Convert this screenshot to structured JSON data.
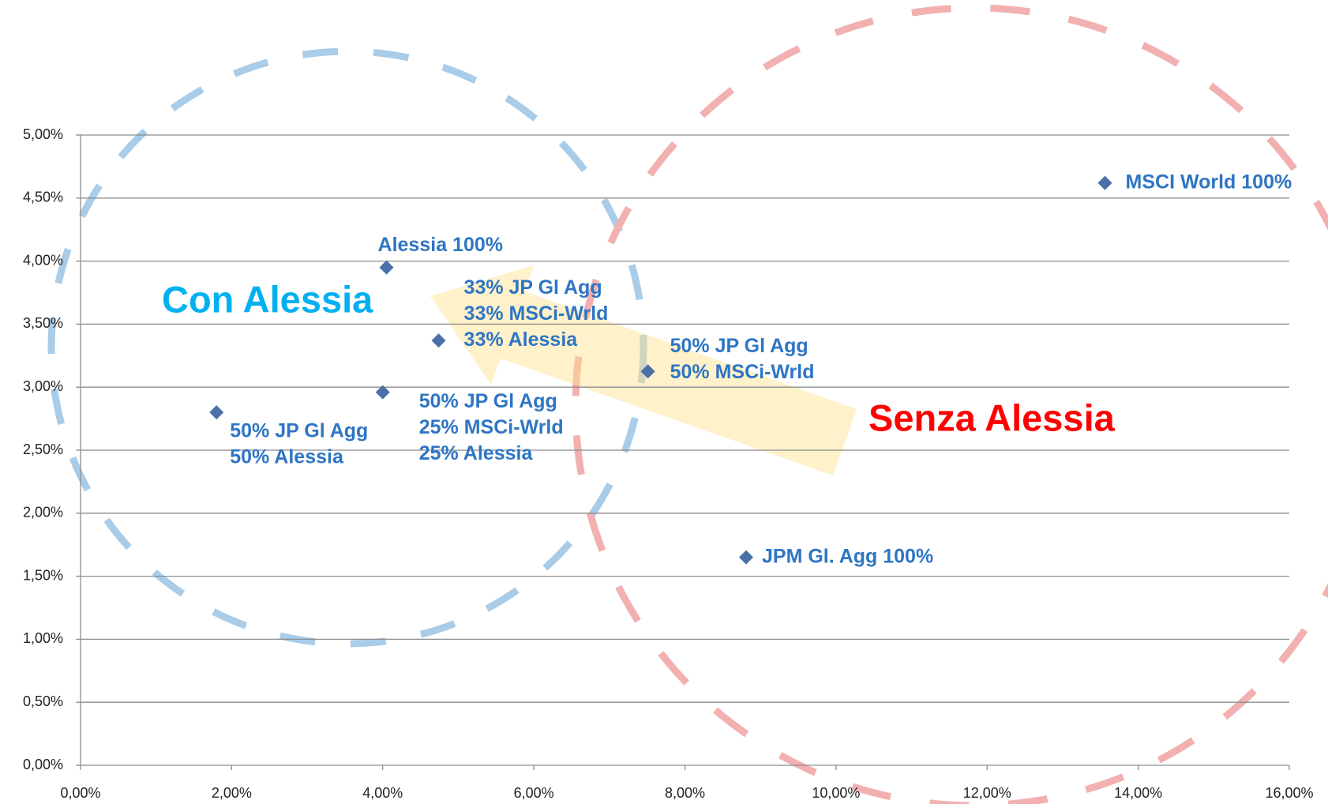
{
  "chart_data": {
    "type": "scatter",
    "x": [
      13.56,
      4.05,
      4.74,
      7.51,
      4.0,
      1.8,
      8.81
    ],
    "values": [
      4.62,
      3.95,
      3.37,
      3.125,
      2.96,
      2.8,
      1.65
    ],
    "point_labels": [
      [
        "MSCI World 100%"
      ],
      [
        "Alessia 100%"
      ],
      [
        "33% JP Gl Agg",
        "33% MSCi-Wrld",
        "33% Alessia"
      ],
      [
        "50% JP Gl Agg",
        "50% MSCi-Wrld"
      ],
      [
        "50% JP Gl Agg",
        "25% MSCi-Wrld",
        "25% Alessia"
      ],
      [
        "50% JP Gl Agg",
        "50% Alessia"
      ],
      [
        "JPM Gl. Agg 100%"
      ]
    ],
    "color": "#4a70a8",
    "xlim": [
      0,
      16
    ],
    "ylim": [
      0,
      5
    ],
    "xticks": [
      {
        "value": 0,
        "label": "0,00%"
      },
      {
        "value": 2,
        "label": "2,00%"
      },
      {
        "value": 4,
        "label": "4,00%"
      },
      {
        "value": 6,
        "label": "6,00%"
      },
      {
        "value": 8,
        "label": "8,00%"
      },
      {
        "value": 10,
        "label": "10,00%"
      },
      {
        "value": 12,
        "label": "12,00%"
      },
      {
        "value": 14,
        "label": "14,00%"
      },
      {
        "value": 16,
        "label": "16,00%"
      }
    ],
    "yticks": [
      {
        "value": 0,
        "label": "0,00%"
      },
      {
        "value": 0.5,
        "label": "0,50%"
      },
      {
        "value": 1,
        "label": "1,00%"
      },
      {
        "value": 1.5,
        "label": "1,50%"
      },
      {
        "value": 2,
        "label": "2,00%"
      },
      {
        "value": 2.5,
        "label": "2,50%"
      },
      {
        "value": 3,
        "label": "3,00%"
      },
      {
        "value": 3.5,
        "label": "3,50%"
      },
      {
        "value": 4,
        "label": "4,00%"
      },
      {
        "value": 4.5,
        "label": "4,50%"
      },
      {
        "value": 5,
        "label": "5,00%"
      }
    ],
    "grid": true,
    "annotations": [
      {
        "text": "Con Alessia",
        "color": "#00b0f0"
      },
      {
        "text": "Senza Alessia",
        "color": "#ff0000"
      }
    ]
  }
}
